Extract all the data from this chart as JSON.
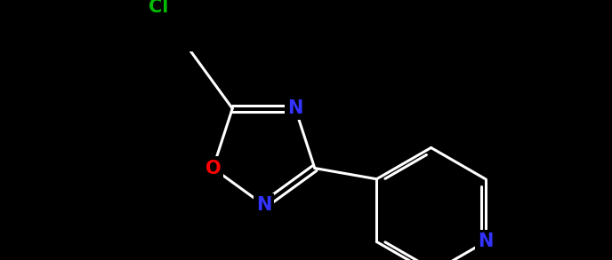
{
  "background_color": "#000000",
  "bond_color": "#ffffff",
  "bond_width": 2.2,
  "cl_color": "#00bb00",
  "o_color": "#ff0000",
  "n_color": "#3333ff",
  "figsize": [
    6.88,
    2.93
  ],
  "dpi": 100,
  "xlim": [
    0,
    6.88
  ],
  "ylim": [
    0,
    2.93
  ],
  "font_size": 15
}
